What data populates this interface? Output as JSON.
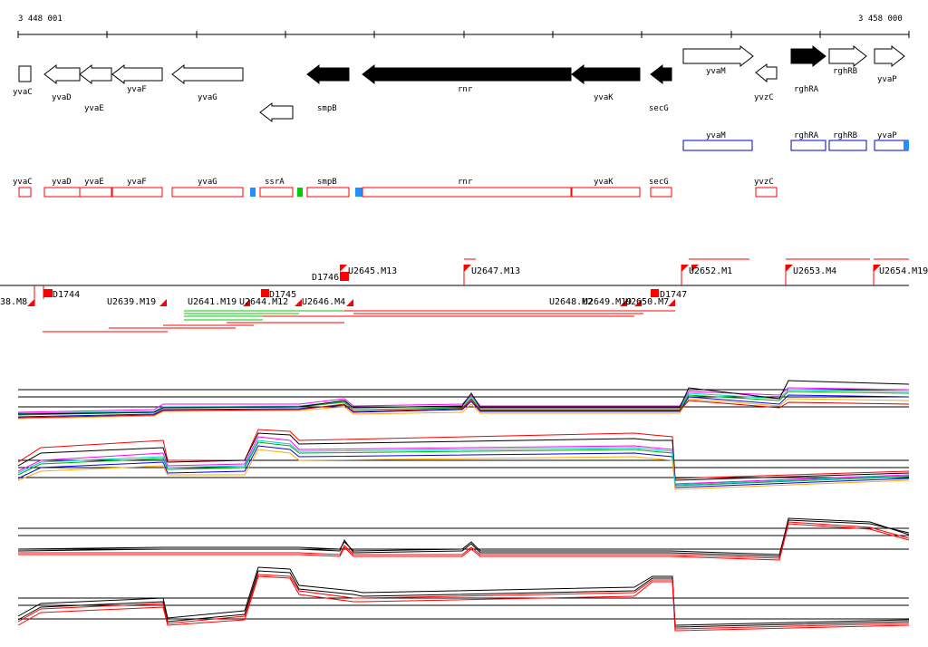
{
  "ruler": {
    "start": "3 448 001",
    "end": "3 458 000"
  },
  "genes_top": [
    "yvaC",
    "yvaD",
    "yvaE",
    "yvaF",
    "yvaG",
    "smpB",
    "rnr",
    "yvaK",
    "secG",
    "yvaM",
    "yvzC",
    "rghRA",
    "rghRB",
    "yvaP"
  ],
  "genes_blue": [
    "yvaM",
    "rghRA",
    "rghRB",
    "yvaP"
  ],
  "genes_red": [
    "yvaC",
    "yvaD",
    "yvaE",
    "yvaF",
    "yvaG",
    "ssrA",
    "smpB",
    "rnr",
    "yvaK",
    "secG",
    "yvzC"
  ],
  "segments_upper": [
    "U2645.M13",
    "U2647.M13",
    "U2652.M1",
    "U2653.M4",
    "U2654.M19",
    "D1746"
  ],
  "segments_lower": [
    "38.M8",
    "D1744",
    "U2639.M19",
    "U2641.M19",
    "U2644.M12",
    "D1745",
    "U2646.M4",
    "U2648.M2",
    "U2649.M19",
    "U2650.M7",
    "D1747"
  ],
  "colors": {
    "forward_gene": "#ffffff",
    "reverse_gene": "#000000",
    "red": "#ff0000",
    "blue": "#0000cc",
    "cyan": "#1e90ff",
    "green": "#00cc00"
  }
}
